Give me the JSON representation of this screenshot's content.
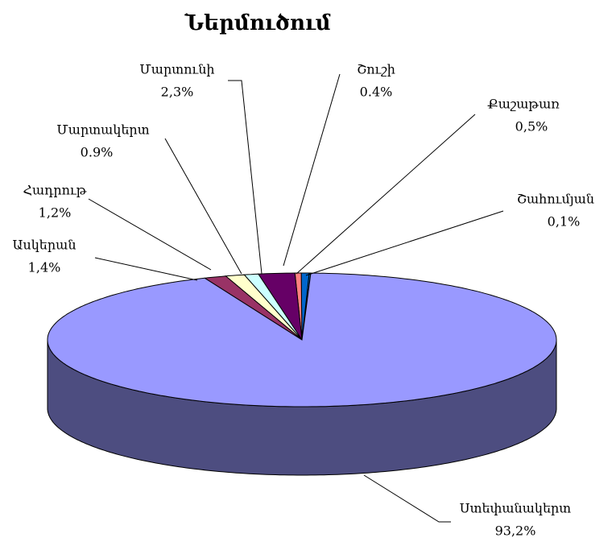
{
  "chart_data": {
    "type": "pie3d",
    "title": "Ներմուծում",
    "categories": [
      "Շահումյան",
      "Քաշաթառ",
      "Շուշի",
      "Մարտունի",
      "Մարտակերտ",
      "Հադրութ",
      "Ասկերան",
      "Ստեփանակերտ"
    ],
    "values": [
      0.1,
      0.5,
      0.4,
      2.3,
      0.9,
      1.2,
      1.4,
      93.2
    ],
    "value_labels": [
      "0,1%",
      "0,5%",
      "0.4%",
      "2,3%",
      "0.9%",
      "1,2%",
      "1,4%",
      "93,2%"
    ],
    "colors": [
      "#0066cc",
      "#0066cc",
      "#ff8080",
      "#660066",
      "#ccffff",
      "#ffffcc",
      "#993366",
      "#9999ff"
    ]
  }
}
